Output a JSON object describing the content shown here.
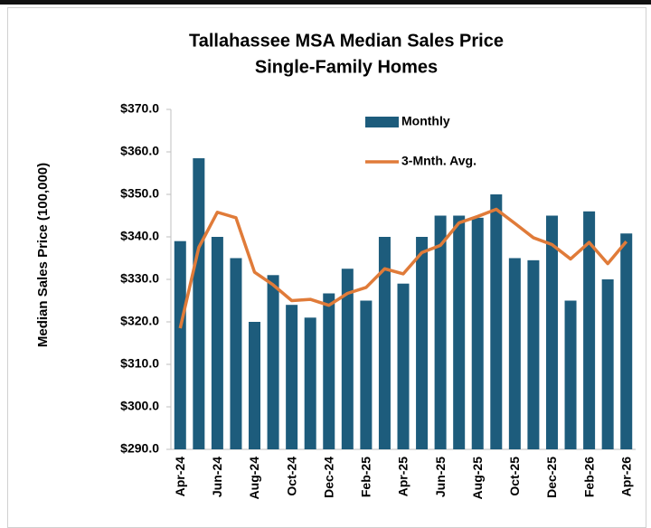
{
  "chart_data": {
    "type": "bar",
    "title": "Tallahassee MSA Median Sales Price",
    "subtitle": "Single-Family Homes",
    "y_label": "Median Sales Price (100,000)",
    "categories": [
      "Apr-24",
      null,
      "Jun-24",
      null,
      "Aug-24",
      null,
      "Oct-24",
      null,
      "Dec-24",
      null,
      "Feb-25",
      null,
      "Apr-25",
      null,
      "Jun-25",
      null,
      "Aug-25",
      null,
      "Oct-25",
      null,
      "Dec-25",
      null,
      "Feb-26",
      null,
      "Apr-26"
    ],
    "series": [
      {
        "name": "Monthly",
        "type": "bar",
        "color": "#1d5c7c",
        "values": [
          339,
          358.5,
          340,
          335,
          320,
          331,
          324,
          321,
          326.7,
          332.5,
          325,
          340,
          329,
          340,
          345,
          345,
          344.5,
          350,
          335,
          334.5,
          345,
          325,
          346,
          330,
          340.8
        ]
      },
      {
        "name": "3-Mnth. Avg.",
        "type": "line",
        "color": "#e07b39",
        "values": [
          318.5,
          337.5,
          345.8,
          344.5,
          331.7,
          328.7,
          325,
          325.3,
          323.9,
          326.7,
          328.1,
          332.5,
          331.3,
          336.3,
          338,
          343.3,
          344.8,
          346.5,
          343.2,
          339.8,
          338.2,
          334.8,
          338.7,
          333.7,
          338.9
        ]
      }
    ],
    "ylim": [
      290,
      370
    ],
    "yticks": [
      {
        "value": 290,
        "label": "$290.0"
      },
      {
        "value": 300,
        "label": "$300.0"
      },
      {
        "value": 310,
        "label": "$310.0"
      },
      {
        "value": 320,
        "label": "$320.0"
      },
      {
        "value": 330,
        "label": "$330.0"
      },
      {
        "value": 340,
        "label": "$340.0"
      },
      {
        "value": 350,
        "label": "$350.0"
      },
      {
        "value": 360,
        "label": "$360.0"
      },
      {
        "value": 370,
        "label": "$370.0"
      }
    ],
    "grid": false,
    "legend": "top"
  }
}
